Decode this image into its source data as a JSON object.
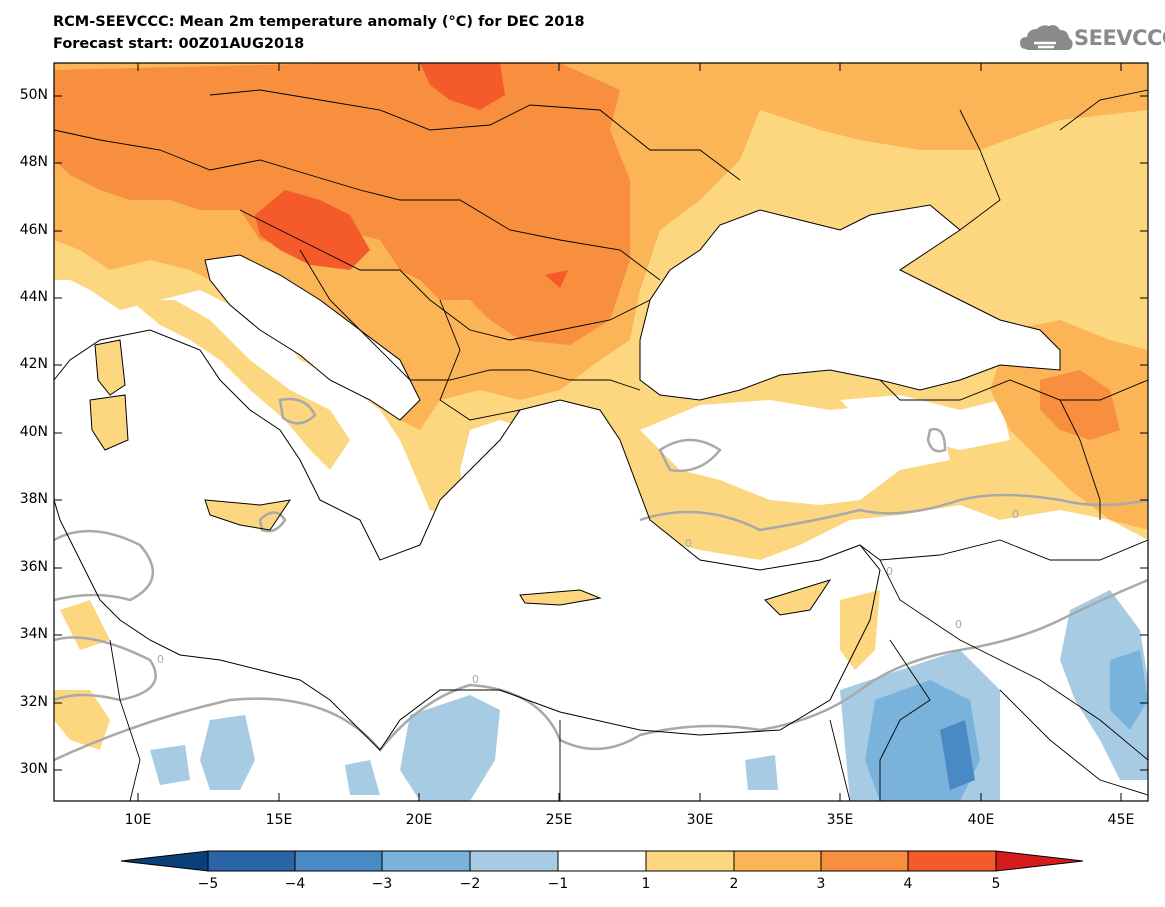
{
  "header": {
    "title_line1": "RCM-SEEVCCC: Mean 2m temperature anomaly (°C) for DEC 2018",
    "title_line2": "Forecast start: 00Z01AUG2018",
    "logo_text": "SEEVCCC"
  },
  "map": {
    "lat_labels": [
      "50N",
      "48N",
      "46N",
      "44N",
      "42N",
      "40N",
      "38N",
      "36N",
      "34N",
      "32N",
      "30N"
    ],
    "lon_labels": [
      "10E",
      "15E",
      "20E",
      "25E",
      "30E",
      "35E",
      "40E",
      "45E"
    ],
    "contour_label": "0",
    "extent": {
      "lon": [
        7,
        46
      ],
      "lat": [
        29,
        51
      ]
    }
  },
  "colorbar": {
    "tick_labels": [
      "−5",
      "−4",
      "−3",
      "−2",
      "−1",
      "1",
      "2",
      "3",
      "4",
      "5"
    ],
    "colors": [
      "#0a3f7a",
      "#2a64a6",
      "#4a8ac4",
      "#79b2da",
      "#a6cbe3",
      "#ffffff",
      "#fdd77f",
      "#fbb456",
      "#f78f3e",
      "#f45a2a",
      "#d41c1c"
    ]
  },
  "colors": {
    "c2": "#fdd77f",
    "c3": "#fbb456",
    "c4": "#f78f3e",
    "c5": "#f45a2a",
    "cold1": "#a6cbe3",
    "cold2": "#79b2da",
    "cold3": "#4a8ac4",
    "contour": "#a9a9a9"
  }
}
